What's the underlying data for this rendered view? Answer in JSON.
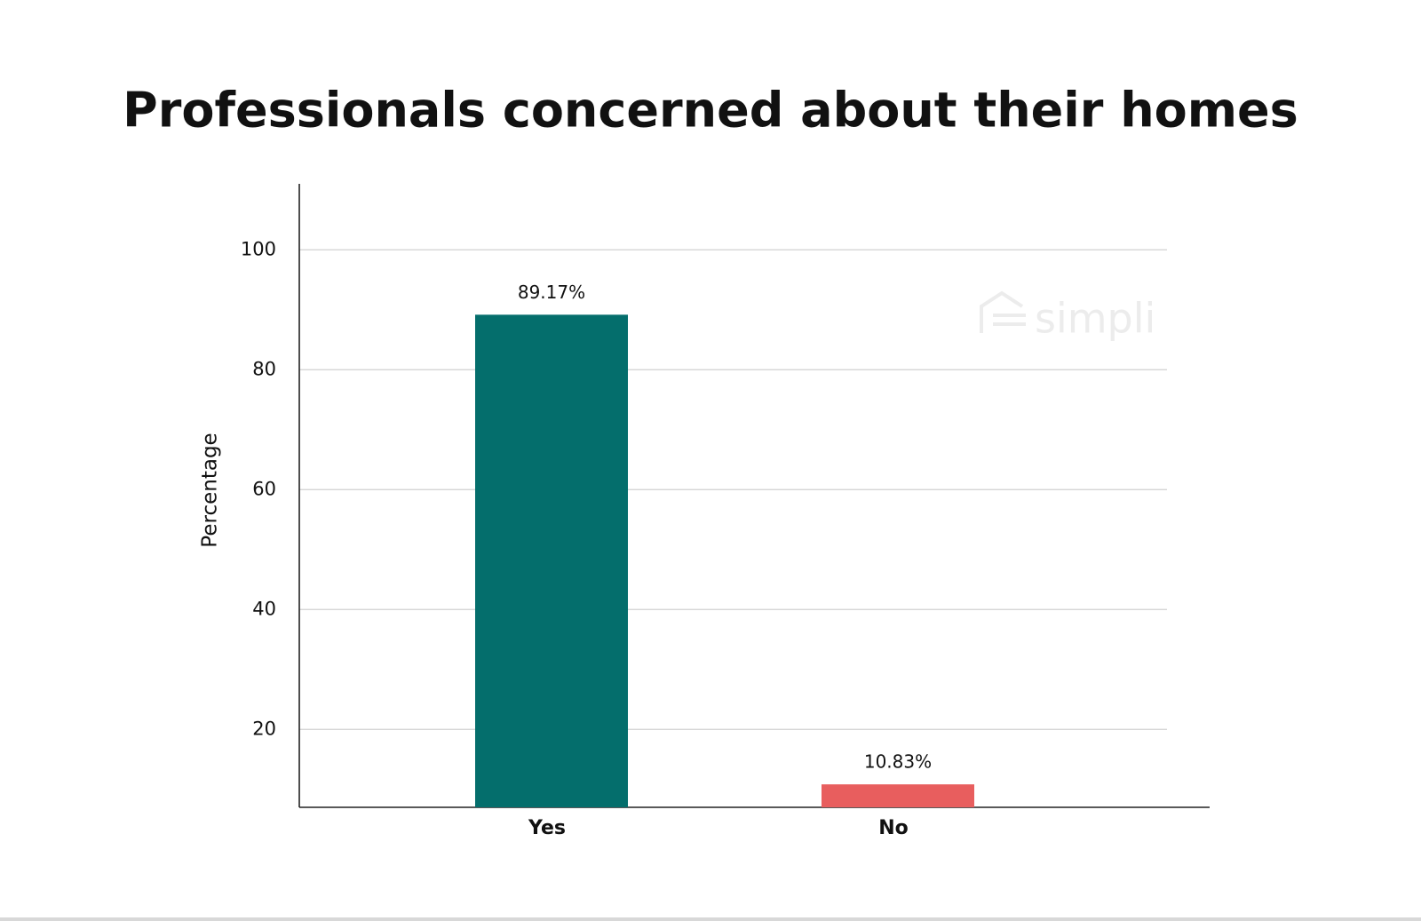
{
  "chart_data": {
    "type": "bar",
    "title": "Professionals concerned about their homes",
    "y_label": "Percentage",
    "watermark": "simpli",
    "categories": [
      "Yes",
      "No"
    ],
    "values": [
      89.17,
      10.83
    ],
    "value_labels": [
      "89.17%",
      "10.83%"
    ],
    "colors": [
      "#046e6c",
      "#e85e5e"
    ],
    "ylim": [
      7,
      111
    ],
    "yticks": [
      20,
      40,
      60,
      80,
      100
    ],
    "grid": true
  }
}
